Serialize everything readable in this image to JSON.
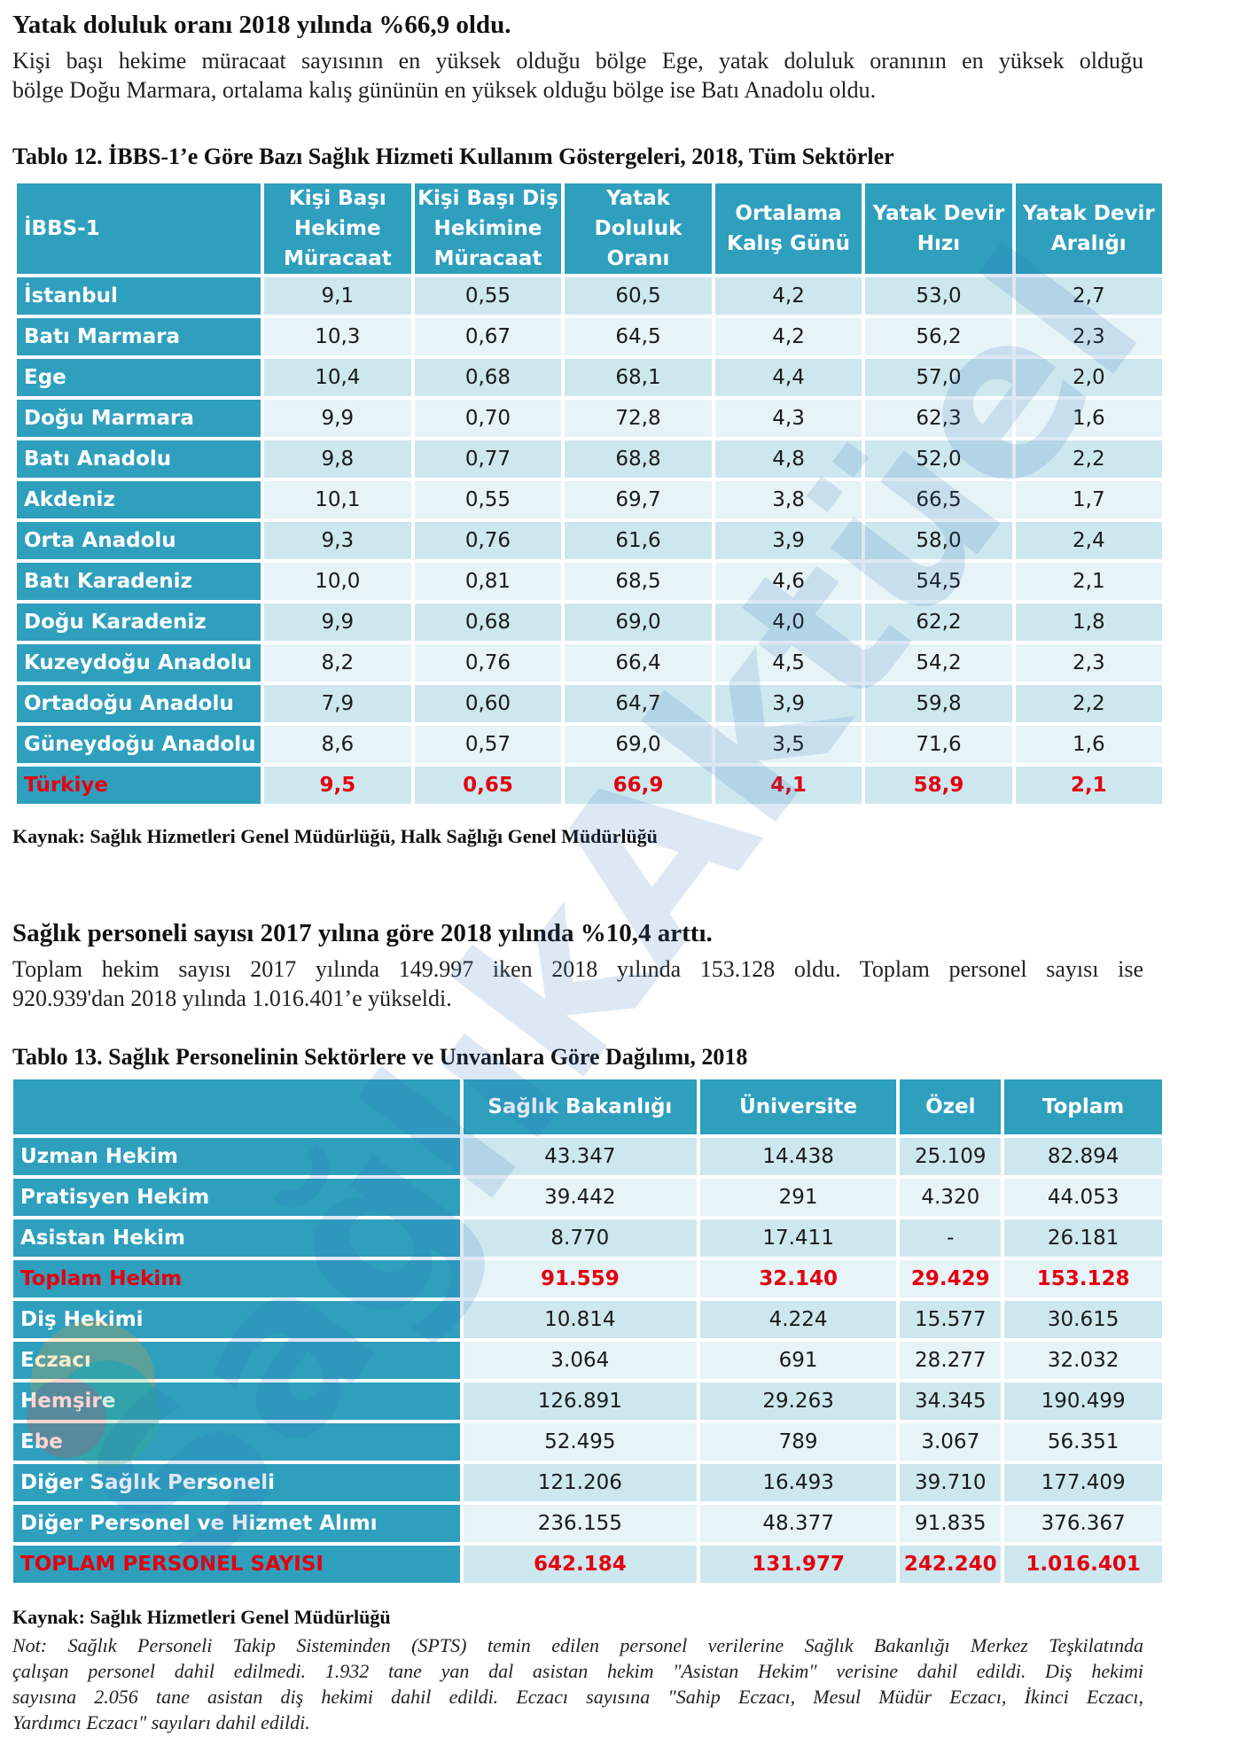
{
  "section1": {
    "heading": "Yatak doluluk oranı 2018 yılında %66,9 oldu.",
    "paragraph_lines": [
      "Kişi başı hekime müracaat sayısının en yüksek olduğu bölge Ege, yatak doluluk oranının en yüksek olduğu",
      "bölge Doğu Marmara, ortalama kalış gününün en yüksek olduğu bölge ise Batı Anadolu oldu."
    ]
  },
  "table12": {
    "caption": "Tablo 12. İBBS-1’e Göre Bazı Sağlık Hizmeti Kullanım Göstergeleri, 2018, Tüm Sektörler",
    "headers": [
      [
        "İBBS-1"
      ],
      [
        "Kişi Başı",
        "Hekime",
        "Müracaat"
      ],
      [
        "Kişi Başı Diş",
        "Hekimine",
        "Müracaat"
      ],
      [
        "Yatak",
        "Doluluk",
        "Oranı"
      ],
      [
        "Ortalama",
        "Kalış Günü"
      ],
      [
        "Yatak Devir",
        "Hızı"
      ],
      [
        "Yatak Devir",
        "Aralığı"
      ]
    ],
    "rows": [
      [
        "İstanbul",
        "9,1",
        "0,55",
        "60,5",
        "4,2",
        "53,0",
        "2,7"
      ],
      [
        "Batı Marmara",
        "10,3",
        "0,67",
        "64,5",
        "4,2",
        "56,2",
        "2,3"
      ],
      [
        "Ege",
        "10,4",
        "0,68",
        "68,1",
        "4,4",
        "57,0",
        "2,0"
      ],
      [
        "Doğu Marmara",
        "9,9",
        "0,70",
        "72,8",
        "4,3",
        "62,3",
        "1,6"
      ],
      [
        "Batı Anadolu",
        "9,8",
        "0,77",
        "68,8",
        "4,8",
        "52,0",
        "2,2"
      ],
      [
        "Akdeniz",
        "10,1",
        "0,55",
        "69,7",
        "3,8",
        "66,5",
        "1,7"
      ],
      [
        "Orta Anadolu",
        "9,3",
        "0,76",
        "61,6",
        "3,9",
        "58,0",
        "2,4"
      ],
      [
        "Batı Karadeniz",
        "10,0",
        "0,81",
        "68,5",
        "4,6",
        "54,5",
        "2,1"
      ],
      [
        "Doğu Karadeniz",
        "9,9",
        "0,68",
        "69,0",
        "4,0",
        "62,2",
        "1,8"
      ],
      [
        "Kuzeydoğu Anadolu",
        "8,2",
        "0,76",
        "66,4",
        "4,5",
        "54,2",
        "2,3"
      ],
      [
        "Ortadoğu Anadolu",
        "7,9",
        "0,60",
        "64,7",
        "3,9",
        "59,8",
        "2,2"
      ],
      [
        "Güneydoğu Anadolu",
        "8,6",
        "0,57",
        "69,0",
        "3,5",
        "71,6",
        "1,6"
      ]
    ],
    "total": [
      "Türkiye",
      "9,5",
      "0,65",
      "66,9",
      "4,1",
      "58,9",
      "2,1"
    ],
    "source": "Kaynak: Sağlık Hizmetleri Genel Müdürlüğü, Halk Sağlığı Genel Müdürlüğü"
  },
  "section2": {
    "heading": "Sağlık personeli sayısı 2017 yılına göre 2018 yılında %10,4 arttı.",
    "paragraph_lines": [
      "Toplam hekim sayısı 2017 yılında 149.997 iken 2018 yılında 153.128 oldu. Toplam personel sayısı ise",
      "920.939'dan 2018 yılında 1.016.401’e yükseldi."
    ]
  },
  "table13": {
    "caption": "Tablo 13. Sağlık Personelinin Sektörlere ve Unvanlara Göre Dağılımı, 2018",
    "headers": [
      "",
      "Sağlık Bakanlığı",
      "Üniversite",
      "Özel",
      "Toplam"
    ],
    "rows": [
      {
        "cells": [
          "Uzman Hekim",
          "43.347",
          "14.438",
          "25.109",
          "82.894"
        ],
        "total": false
      },
      {
        "cells": [
          "Pratisyen Hekim",
          "39.442",
          "291",
          "4.320",
          "44.053"
        ],
        "total": false
      },
      {
        "cells": [
          "Asistan Hekim",
          "8.770",
          "17.411",
          "-",
          "26.181"
        ],
        "total": false
      },
      {
        "cells": [
          "Toplam Hekim",
          "91.559",
          "32.140",
          "29.429",
          "153.128"
        ],
        "total": true
      },
      {
        "cells": [
          "Diş Hekimi",
          "10.814",
          "4.224",
          "15.577",
          "30.615"
        ],
        "total": false
      },
      {
        "cells": [
          "Eczacı",
          "3.064",
          "691",
          "28.277",
          "32.032"
        ],
        "total": false
      },
      {
        "cells": [
          "Hemşire",
          "126.891",
          "29.263",
          "34.345",
          "190.499"
        ],
        "total": false
      },
      {
        "cells": [
          "Ebe",
          "52.495",
          "789",
          "3.067",
          "56.351"
        ],
        "total": false
      },
      {
        "cells": [
          "Diğer Sağlık Personeli",
          "121.206",
          "16.493",
          "39.710",
          "177.409"
        ],
        "total": false
      },
      {
        "cells": [
          "Diğer Personel ve Hizmet Alımı",
          "236.155",
          "48.377",
          "91.835",
          "376.367"
        ],
        "total": false
      },
      {
        "cells": [
          "TOPLAM PERSONEL SAYISI",
          "642.184",
          "131.977",
          "242.240",
          "1.016.401"
        ],
        "total": true
      }
    ],
    "source": "Kaynak: Sağlık Hizmetleri Genel Müdürlüğü",
    "note_lines": [
      "Not: Sağlık Personeli Takip Sisteminden (SPTS) temin edilen personel verilerine Sağlık Bakanlığı Merkez Teşkilatında",
      "çalışan personel dahil edilmedi. 1.932 tane yan dal asistan hekim \"Asistan Hekim\" verisine dahil edildi. Diş hekimi",
      "sayısına 2.056 tane asistan diş hekimi dahil edildi. Eczacı sayısına \"Sahip Eczacı, Mesul Müdür Eczacı, İkinci Eczacı,",
      "Yardımcı Eczacı\" sayıları dahil edildi."
    ]
  },
  "watermark": {
    "text": "SağlıkAktüel",
    "color": "#2a6fb8"
  },
  "colors": {
    "header_bg": "#2f9fbe",
    "cell_light": "#e6f3f7",
    "cell_dark": "#cde7ef",
    "total_text": "#e3000f"
  }
}
